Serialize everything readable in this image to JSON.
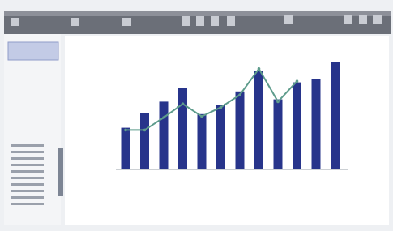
{
  "chart_data": {
    "type": "bar",
    "ylim": [
      0,
      100
    ],
    "series": [
      {
        "type": "bar",
        "color": "#27348b",
        "values": [
          36,
          49,
          59,
          71,
          48,
          56,
          68,
          86,
          61,
          76,
          79,
          94
        ]
      },
      {
        "type": "line",
        "color": "#5e9c8c",
        "values": [
          34,
          34,
          45,
          57,
          46,
          54,
          65,
          88,
          59,
          77,
          null,
          null
        ]
      }
    ]
  }
}
